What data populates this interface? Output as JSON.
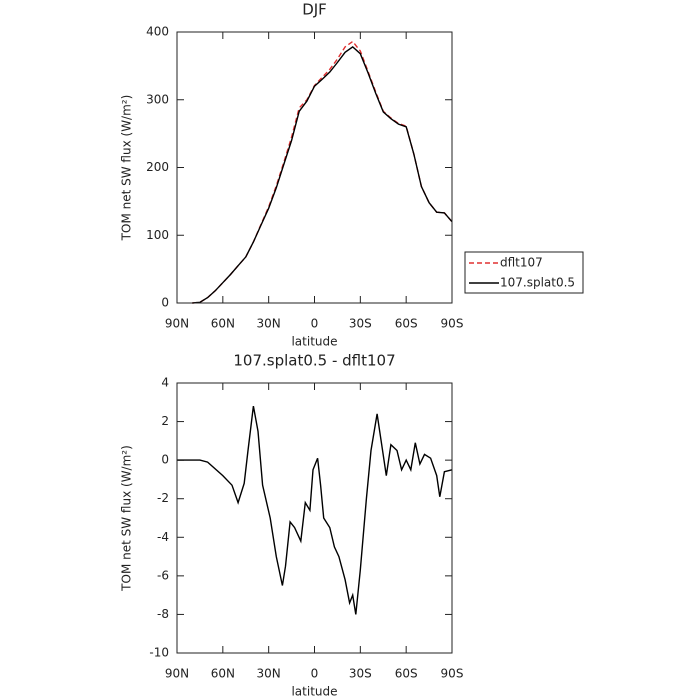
{
  "chart_data": [
    {
      "type": "line",
      "title": "DJF",
      "xlabel": "latitude",
      "ylabel": "TOM net SW flux (W/m²)",
      "x": [
        80,
        75,
        70,
        65,
        60,
        55,
        50,
        45,
        40,
        35,
        30,
        25,
        20,
        15,
        10,
        5,
        0,
        -5,
        -10,
        -15,
        -20,
        -25,
        -30,
        -35,
        -40,
        -45,
        -50,
        -55,
        -60,
        -65,
        -70,
        -75,
        -80,
        -85,
        -90
      ],
      "series": [
        {
          "name": "dflt107",
          "color": "#e03030",
          "linestyle": "dashed",
          "values": [
            0,
            1,
            8,
            18,
            30,
            42,
            55,
            68,
            90,
            116,
            142,
            173,
            208,
            245,
            288,
            300,
            321,
            333,
            345,
            360,
            378,
            386,
            372,
            342,
            312,
            283,
            273,
            265,
            261,
            220,
            172,
            148,
            134,
            133,
            120
          ]
        },
        {
          "name": "107.splat0.5",
          "color": "#000000",
          "linestyle": "solid",
          "values": [
            0,
            1,
            8,
            18,
            30,
            42,
            55,
            68,
            90,
            115,
            140,
            170,
            205,
            240,
            283,
            298,
            320,
            330,
            341,
            355,
            370,
            378,
            368,
            340,
            310,
            282,
            272,
            264,
            260,
            220,
            172,
            148,
            134,
            133,
            120
          ]
        }
      ],
      "xlim": [
        90,
        -90
      ],
      "xticks": [
        {
          "value": 90,
          "label": "90N"
        },
        {
          "value": 60,
          "label": "60N"
        },
        {
          "value": 30,
          "label": "30N"
        },
        0,
        {
          "value": -30,
          "label": "30S"
        },
        {
          "value": -60,
          "label": "60S"
        },
        {
          "value": -90,
          "label": "90S"
        }
      ],
      "ylim": [
        0,
        400
      ],
      "yticks": [
        0,
        100,
        200,
        300,
        400
      ],
      "legend": "right"
    },
    {
      "type": "line",
      "title": "107.splat0.5 - dflt107",
      "xlabel": "latitude",
      "ylabel": "TOM net SW flux (W/m²)",
      "x": [
        90,
        80,
        75,
        70,
        60,
        54,
        50,
        46,
        43.5,
        40,
        37,
        34,
        29,
        25,
        21,
        19,
        16,
        13,
        9,
        6,
        3,
        1,
        -2,
        -4,
        -6,
        -10,
        -13,
        -16,
        -20,
        -23,
        -25,
        -27,
        -30,
        -34,
        -37,
        -41,
        -44,
        -47,
        -50,
        -54,
        -57,
        -60,
        -63,
        -66,
        -69,
        -72,
        -76,
        -80,
        -82,
        -85,
        -90
      ],
      "series": [
        {
          "color": "#000000",
          "linestyle": "solid",
          "values": [
            0,
            0,
            0,
            -0.1,
            -0.8,
            -1.3,
            -2.2,
            -1.2,
            0.5,
            2.8,
            1.5,
            -1.3,
            -3,
            -5,
            -6.5,
            -5.5,
            -3.2,
            -3.5,
            -4.2,
            -2.2,
            -2.6,
            -0.5,
            0.1,
            -1.3,
            -3,
            -3.5,
            -4.5,
            -5,
            -6.2,
            -7.4,
            -7,
            -8,
            -5.7,
            -2,
            0.5,
            2.4,
            0.8,
            -0.8,
            0.8,
            0.5,
            -0.5,
            0,
            -0.5,
            0.9,
            -0.2,
            0.3,
            0.1,
            -0.8,
            -1.9,
            -0.6,
            -0.5
          ]
        }
      ],
      "xlim": [
        90,
        -90
      ],
      "xticks": [
        {
          "value": 90,
          "label": "90N"
        },
        {
          "value": 60,
          "label": "60N"
        },
        {
          "value": 30,
          "label": "30N"
        },
        0,
        {
          "value": -30,
          "label": "30S"
        },
        {
          "value": -60,
          "label": "60S"
        },
        {
          "value": -90,
          "label": "90S"
        }
      ],
      "ylim": [
        -10,
        4
      ],
      "yticks": [
        -10,
        -8,
        -6,
        -4,
        -2,
        0,
        2,
        4
      ]
    }
  ]
}
